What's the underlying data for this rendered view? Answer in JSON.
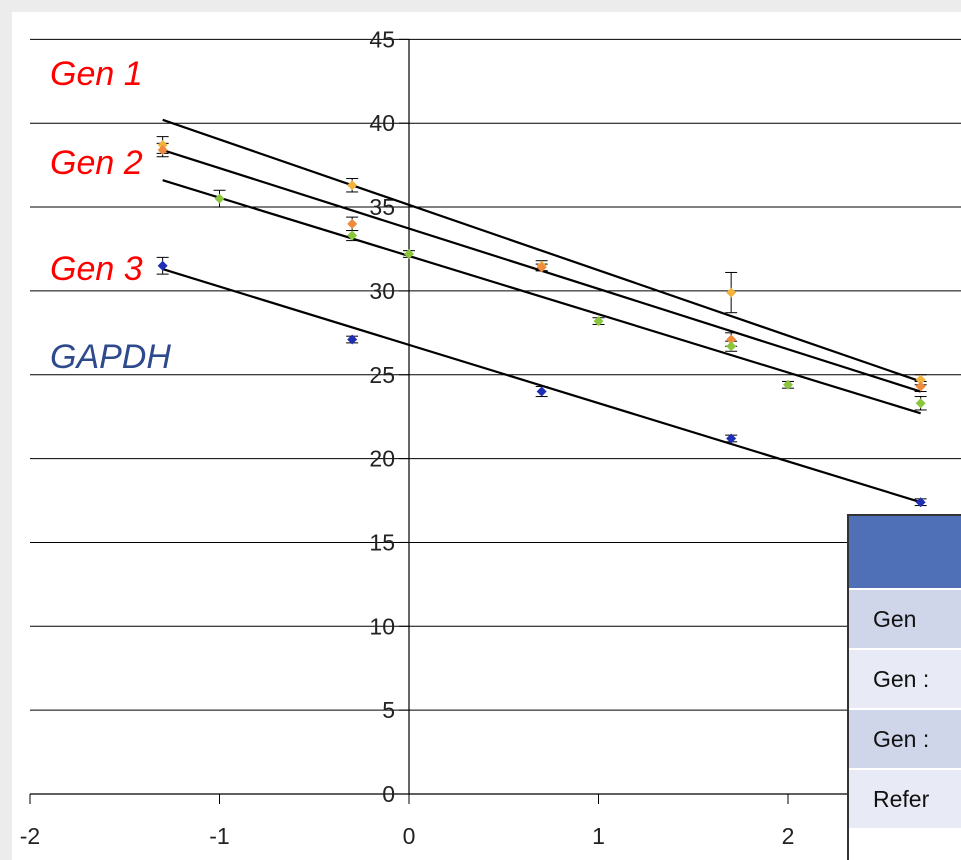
{
  "chart_data": {
    "type": "scatter",
    "title": "",
    "xlabel": "",
    "ylabel": "",
    "xlim": [
      -2,
      2.8
    ],
    "ylim": [
      0,
      45
    ],
    "x_ticks": [
      "-2",
      "-1",
      "0",
      "1",
      "2"
    ],
    "y_ticks": [
      "0",
      "5",
      "10",
      "15",
      "20",
      "25",
      "30",
      "35",
      "40",
      "45"
    ],
    "grid": "horizontal",
    "series": [
      {
        "name": "Gen 1",
        "label_color": "#ff0000",
        "marker_color": "#f2b43c",
        "points": [
          {
            "x": -1.3,
            "y": 38.7,
            "err": 0.5
          },
          {
            "x": -0.3,
            "y": 36.3,
            "err": 0.4
          },
          {
            "x": 0.7,
            "y": 31.5,
            "err": 0.3
          },
          {
            "x": 1.7,
            "y": 29.9,
            "err": 1.2
          },
          {
            "x": 2.7,
            "y": 24.7,
            "err": 0.3
          }
        ],
        "trend": [
          {
            "x": -1.3,
            "y": 40.2
          },
          {
            "x": 2.7,
            "y": 24.6
          }
        ]
      },
      {
        "name": "Gen 2",
        "label_color": "#ff0000",
        "marker_color": "#f08a3c",
        "points": [
          {
            "x": -1.3,
            "y": 38.4,
            "err": 0.4
          },
          {
            "x": -0.3,
            "y": 34.0,
            "err": 0.4
          },
          {
            "x": 0.7,
            "y": 31.4,
            "err": 0.2
          },
          {
            "x": 1.7,
            "y": 27.1,
            "err": 0.4
          },
          {
            "x": 2.7,
            "y": 24.3,
            "err": 0.3
          }
        ],
        "trend": [
          {
            "x": -1.3,
            "y": 38.4
          },
          {
            "x": 2.7,
            "y": 24.0
          }
        ]
      },
      {
        "name": "Gen 3",
        "label_color": "#ff0000",
        "marker_color": "#8cc63f",
        "points": [
          {
            "x": -1.0,
            "y": 35.5,
            "err": 0.5
          },
          {
            "x": -0.3,
            "y": 33.3,
            "err": 0.3
          },
          {
            "x": 0.0,
            "y": 32.2,
            "err": 0.2
          },
          {
            "x": 1.0,
            "y": 28.2,
            "err": 0.2
          },
          {
            "x": 1.7,
            "y": 26.7,
            "err": 0.3
          },
          {
            "x": 2.0,
            "y": 24.4,
            "err": 0.2
          },
          {
            "x": 2.7,
            "y": 23.3,
            "err": 0.4
          }
        ],
        "trend": [
          {
            "x": -1.3,
            "y": 36.6
          },
          {
            "x": 2.7,
            "y": 22.7
          }
        ]
      },
      {
        "name": "GAPDH",
        "label_color": "#2e4a8c",
        "marker_color": "#1f2fb5",
        "points": [
          {
            "x": -1.3,
            "y": 31.5,
            "err": 0.5
          },
          {
            "x": -0.3,
            "y": 27.1,
            "err": 0.2
          },
          {
            "x": 0.7,
            "y": 24.0,
            "err": 0.3
          },
          {
            "x": 1.7,
            "y": 21.2,
            "err": 0.2
          },
          {
            "x": 2.7,
            "y": 17.4,
            "err": 0.2
          }
        ],
        "trend": [
          {
            "x": -1.3,
            "y": 31.3
          },
          {
            "x": 2.7,
            "y": 17.4
          }
        ]
      }
    ]
  },
  "legend_labels": [
    "Gen 1",
    "Gen 2",
    "Gen 3",
    "GAPDH"
  ],
  "table": {
    "header_color": "#4f6fb6",
    "rows": [
      "Gen",
      "Gen :",
      "Gen :",
      "Refer"
    ]
  }
}
